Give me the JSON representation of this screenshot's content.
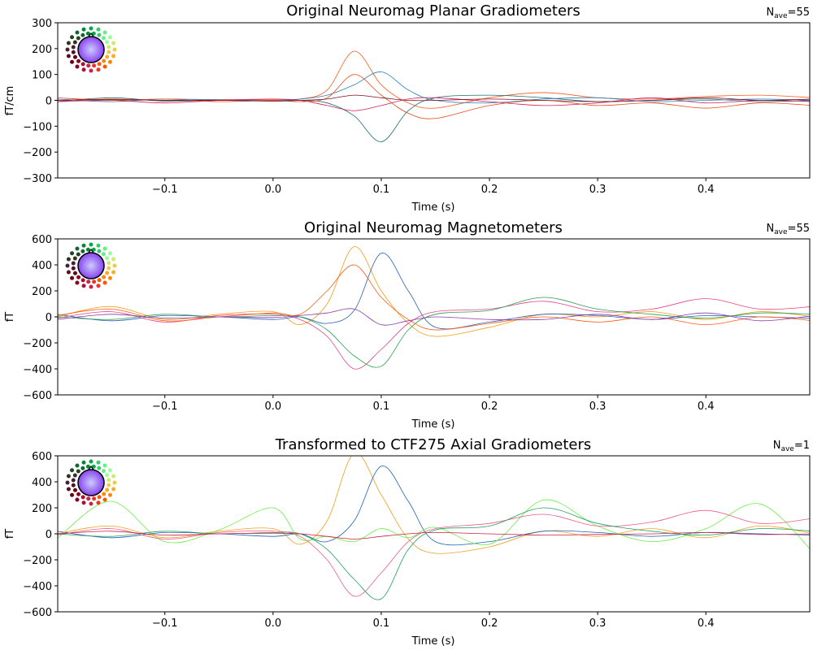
{
  "chart_data": [
    {
      "type": "line",
      "title": "Original Neuromag Planar Gradiometers",
      "nave_label": "N",
      "nave_sub": "ave",
      "nave_value": "=55",
      "xlabel": "Time (s)",
      "ylabel": "fT/cm",
      "xlim": [
        -0.199,
        0.496
      ],
      "ylim": [
        -300,
        300
      ],
      "xticks": [
        "−0.1",
        "0.0",
        "0.1",
        "0.2",
        "0.3",
        "0.4"
      ],
      "xtick_values": [
        -0.1,
        0.0,
        0.1,
        0.2,
        0.3,
        0.4
      ],
      "yticks": [
        "300",
        "200",
        "100",
        "0",
        "−100",
        "−200",
        "−300"
      ],
      "ytick_values": [
        300,
        200,
        100,
        0,
        -100,
        -200,
        -300
      ],
      "grid": false,
      "sensor_legend": "top-left head topomap (colored sensor positions)",
      "x": [
        -0.2,
        -0.15,
        -0.1,
        -0.05,
        0,
        0.025,
        0.05,
        0.075,
        0.1,
        0.125,
        0.15,
        0.2,
        0.25,
        0.3,
        0.35,
        0.4,
        0.45,
        0.5
      ],
      "series": [
        {
          "color": "#ff5a1e",
          "values": [
            0,
            5,
            0,
            3,
            2,
            5,
            40,
            190,
            60,
            -10,
            -30,
            10,
            30,
            10,
            5,
            15,
            20,
            10
          ]
        },
        {
          "color": "#1f6f70",
          "values": [
            -5,
            10,
            -3,
            0,
            -2,
            0,
            -10,
            -60,
            -160,
            -40,
            10,
            20,
            10,
            -5,
            0,
            5,
            -5,
            0
          ]
        },
        {
          "color": "#2a7fb8",
          "values": [
            5,
            -5,
            5,
            2,
            0,
            5,
            20,
            60,
            110,
            40,
            0,
            -10,
            5,
            10,
            -5,
            0,
            5,
            0
          ]
        },
        {
          "color": "#d02060",
          "values": [
            -5,
            0,
            -10,
            0,
            5,
            0,
            -20,
            -40,
            -20,
            5,
            10,
            -5,
            -20,
            -10,
            10,
            -10,
            0,
            -5
          ]
        },
        {
          "color": "#e64a19",
          "values": [
            10,
            0,
            5,
            -5,
            0,
            -5,
            10,
            100,
            20,
            -50,
            -70,
            -20,
            0,
            -20,
            -10,
            -30,
            -10,
            -20
          ]
        },
        {
          "color": "#7b1020",
          "values": [
            0,
            3,
            0,
            0,
            -3,
            0,
            5,
            20,
            10,
            0,
            0,
            5,
            0,
            -5,
            0,
            10,
            0,
            5
          ]
        }
      ]
    },
    {
      "type": "line",
      "title": "Original Neuromag Magnetometers",
      "nave_label": "N",
      "nave_sub": "ave",
      "nave_value": "=55",
      "xlabel": "Time (s)",
      "ylabel": "fT",
      "xlim": [
        -0.199,
        0.496
      ],
      "ylim": [
        -600,
        600
      ],
      "xticks": [
        "−0.1",
        "0.0",
        "0.1",
        "0.2",
        "0.3",
        "0.4"
      ],
      "xtick_values": [
        -0.1,
        0.0,
        0.1,
        0.2,
        0.3,
        0.4
      ],
      "yticks": [
        "600",
        "400",
        "200",
        "0",
        "−200",
        "−400",
        "−600"
      ],
      "ytick_values": [
        600,
        400,
        200,
        0,
        -200,
        -400,
        -600
      ],
      "grid": false,
      "sensor_legend": "top-left head topomap (colored sensor positions)",
      "x": [
        -0.2,
        -0.15,
        -0.1,
        -0.05,
        0,
        0.025,
        0.05,
        0.075,
        0.1,
        0.125,
        0.15,
        0.2,
        0.25,
        0.3,
        0.35,
        0.4,
        0.45,
        0.5
      ],
      "series": [
        {
          "color": "#f39c12",
          "values": [
            0,
            80,
            -20,
            20,
            40,
            -60,
            100,
            540,
            200,
            -50,
            -150,
            -80,
            20,
            0,
            40,
            -20,
            40,
            0
          ]
        },
        {
          "color": "#2c5fb5",
          "values": [
            20,
            -30,
            10,
            0,
            -20,
            0,
            -50,
            50,
            490,
            200,
            -80,
            -40,
            20,
            10,
            -20,
            10,
            0,
            -10
          ]
        },
        {
          "color": "#e8408a",
          "values": [
            -10,
            40,
            -40,
            10,
            20,
            -20,
            -150,
            -400,
            -250,
            -50,
            40,
            60,
            120,
            40,
            60,
            140,
            60,
            80
          ]
        },
        {
          "color": "#2aa04a",
          "values": [
            0,
            -20,
            20,
            0,
            10,
            0,
            -100,
            -300,
            -380,
            -100,
            20,
            50,
            150,
            60,
            20,
            -10,
            30,
            20
          ]
        },
        {
          "color": "#ff5a10",
          "values": [
            10,
            60,
            -30,
            0,
            30,
            20,
            200,
            400,
            150,
            -20,
            -100,
            -50,
            0,
            -40,
            0,
            -60,
            0,
            -30
          ]
        },
        {
          "color": "#8a3aa8",
          "values": [
            -20,
            20,
            -10,
            0,
            -5,
            10,
            30,
            60,
            -60,
            -30,
            0,
            -20,
            -20,
            20,
            -20,
            30,
            -30,
            10
          ]
        }
      ]
    },
    {
      "type": "line",
      "title": "Transformed to CTF275 Axial Gradiometers",
      "nave_label": "N",
      "nave_sub": "ave",
      "nave_value": "=1",
      "xlabel": "Time (s)",
      "ylabel": "fT",
      "xlim": [
        -0.199,
        0.496
      ],
      "ylim": [
        -600,
        600
      ],
      "xticks": [
        "−0.1",
        "0.0",
        "0.1",
        "0.2",
        "0.3",
        "0.4"
      ],
      "xtick_values": [
        -0.1,
        0.0,
        0.1,
        0.2,
        0.3,
        0.4
      ],
      "yticks": [
        "600",
        "400",
        "200",
        "0",
        "−200",
        "−400",
        "−600"
      ],
      "ytick_values": [
        600,
        400,
        200,
        0,
        -200,
        -400,
        -600
      ],
      "grid": false,
      "sensor_legend": "top-left head topomap (colored sensor positions)",
      "x": [
        -0.2,
        -0.15,
        -0.1,
        -0.05,
        0,
        0.025,
        0.05,
        0.075,
        0.1,
        0.125,
        0.15,
        0.2,
        0.25,
        0.3,
        0.35,
        0.4,
        0.45,
        0.5
      ],
      "series": [
        {
          "color": "#f0a020",
          "values": [
            0,
            60,
            -30,
            20,
            40,
            -80,
            100,
            620,
            300,
            -40,
            -150,
            -100,
            20,
            -20,
            40,
            -30,
            60,
            0
          ]
        },
        {
          "color": "#2060b0",
          "values": [
            20,
            -30,
            10,
            0,
            -20,
            0,
            -60,
            100,
            520,
            250,
            -60,
            -60,
            20,
            10,
            -20,
            10,
            0,
            -10
          ]
        },
        {
          "color": "#66ee44",
          "values": [
            -40,
            250,
            -60,
            30,
            200,
            -40,
            -20,
            -60,
            40,
            -30,
            50,
            -80,
            260,
            60,
            -60,
            40,
            230,
            -150
          ]
        },
        {
          "color": "#ee5a8a",
          "values": [
            -10,
            40,
            -40,
            10,
            20,
            -20,
            -200,
            -480,
            -300,
            -60,
            40,
            80,
            150,
            60,
            90,
            180,
            80,
            120
          ]
        },
        {
          "color": "#20a060",
          "values": [
            0,
            -20,
            20,
            0,
            10,
            0,
            -120,
            -350,
            -500,
            -120,
            30,
            60,
            200,
            80,
            20,
            -10,
            40,
            20
          ]
        },
        {
          "color": "#cc2040",
          "values": [
            0,
            20,
            -10,
            0,
            5,
            0,
            -20,
            -40,
            -20,
            0,
            10,
            0,
            -10,
            -5,
            0,
            10,
            -5,
            0
          ]
        }
      ]
    }
  ]
}
